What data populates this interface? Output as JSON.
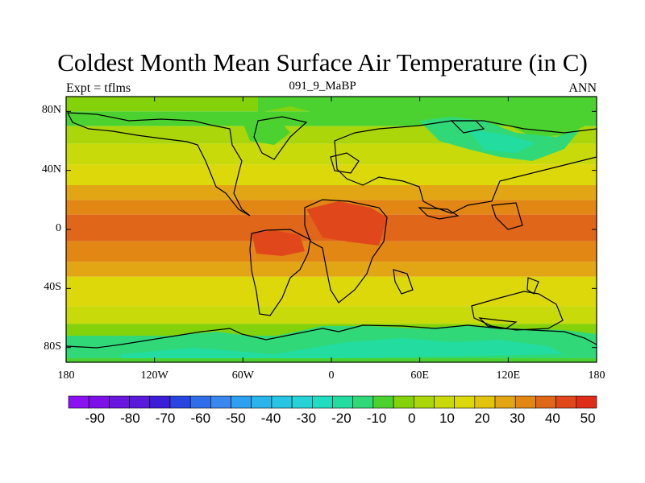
{
  "title": "Coldest Month Mean Surface Air Temperature (in C)",
  "subtitle_left": "Expt = tflms",
  "subtitle_center": "091_9_MaBP",
  "subtitle_right": "ANN",
  "y_ticks": [
    {
      "label": "80N",
      "lat": 80
    },
    {
      "label": "40N",
      "lat": 40
    },
    {
      "label": "0",
      "lat": 0
    },
    {
      "label": "40S",
      "lat": -40
    },
    {
      "label": "80S",
      "lat": -80
    }
  ],
  "x_ticks": [
    {
      "label": "180",
      "lon": -180
    },
    {
      "label": "120W",
      "lon": -120
    },
    {
      "label": "60W",
      "lon": -60
    },
    {
      "label": "0",
      "lon": 0
    },
    {
      "label": "60E",
      "lon": 60
    },
    {
      "label": "120E",
      "lon": 120
    },
    {
      "label": "180",
      "lon": 180
    }
  ],
  "colorbar": {
    "colors": [
      "#8a12f0",
      "#7d10e6",
      "#6a16e0",
      "#5a18da",
      "#3a1ed8",
      "#2a44e0",
      "#2f6ee8",
      "#3a88ee",
      "#2fa0f0",
      "#2ab4ec",
      "#28c4e4",
      "#26d2d6",
      "#20dcc0",
      "#22dca0",
      "#30d878",
      "#4cd230",
      "#84d20a",
      "#aad60a",
      "#c8da0a",
      "#dcd80a",
      "#e2c40e",
      "#e2a614",
      "#e28614",
      "#e0661a",
      "#e0481c",
      "#de2e1a"
    ],
    "labels": [
      {
        "text": "-90",
        "boundary": 1
      },
      {
        "text": "-80",
        "boundary": 3
      },
      {
        "text": "-70",
        "boundary": 5
      },
      {
        "text": "-60",
        "boundary": 7
      },
      {
        "text": "-50",
        "boundary": 9
      },
      {
        "text": "-40",
        "boundary": 11
      },
      {
        "text": "-30",
        "boundary": 13
      },
      {
        "text": "-20",
        "boundary": 15
      },
      {
        "text": "-10",
        "boundary": 17
      },
      {
        "text": "0",
        "boundary": 19
      },
      {
        "text": "10",
        "boundary": 21
      },
      {
        "text": "20",
        "boundary": 23
      },
      {
        "text": "30",
        "boundary": 25
      },
      {
        "text": "40",
        "boundary": 27
      },
      {
        "text": "50",
        "boundary": 29
      }
    ]
  },
  "map": {
    "lon_range": [
      -180,
      180
    ],
    "lat_range": [
      -90,
      90
    ],
    "bands": [
      {
        "lat_top": 90,
        "lat_bot": 80,
        "color": "#84d20a"
      },
      {
        "lat_top": 80,
        "lat_bot": 70,
        "color": "#4cd230"
      },
      {
        "lat_top": 70,
        "lat_bot": 58,
        "color": "#aad60a"
      },
      {
        "lat_top": 58,
        "lat_bot": 44,
        "color": "#c8da0a"
      },
      {
        "lat_top": 44,
        "lat_bot": 30,
        "color": "#dcd80a"
      },
      {
        "lat_top": 30,
        "lat_bot": 20,
        "color": "#e2a614"
      },
      {
        "lat_top": 20,
        "lat_bot": 10,
        "color": "#e28614"
      },
      {
        "lat_top": 10,
        "lat_bot": -8,
        "color": "#e0661a"
      },
      {
        "lat_top": -8,
        "lat_bot": -22,
        "color": "#e28614"
      },
      {
        "lat_top": -22,
        "lat_bot": -32,
        "color": "#e2a614"
      },
      {
        "lat_top": -32,
        "lat_bot": -52,
        "color": "#dcd80a"
      },
      {
        "lat_top": -52,
        "lat_bot": -64,
        "color": "#c8da0a"
      },
      {
        "lat_top": -64,
        "lat_bot": -72,
        "color": "#84d20a"
      },
      {
        "lat_top": -72,
        "lat_bot": -82,
        "color": "#30d878"
      },
      {
        "lat_top": -82,
        "lat_bot": -90,
        "color": "#4cd230"
      }
    ]
  }
}
